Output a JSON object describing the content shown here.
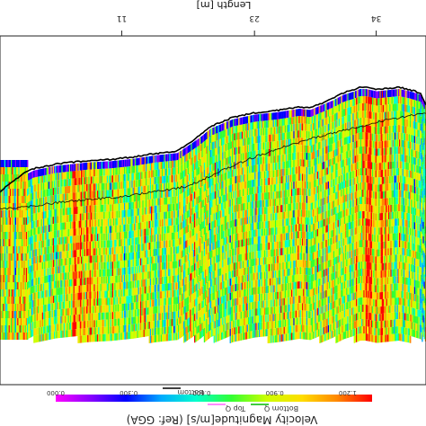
{
  "chart_data": {
    "type": "heatmap",
    "xlabel": "Length [m]",
    "x_ticks": [
      "11",
      "23",
      "34"
    ],
    "x_tick_values": [
      11,
      23,
      34
    ],
    "xlim": [
      0,
      38.5
    ],
    "colorbar": {
      "title": "Velocity Magnitude[m/s] (Ref: GGA)",
      "ticks": [
        "0.000",
        "0.300",
        "0.600",
        "0.900",
        "1.200"
      ],
      "tick_values": [
        0.0,
        0.3,
        0.6,
        0.9,
        1.2
      ],
      "range": [
        0.0,
        1.3
      ],
      "colors": [
        "#ff00ff",
        "#8800ff",
        "#0000ff",
        "#00aaff",
        "#00ffcc",
        "#33ff33",
        "#ccff00",
        "#ffdd00",
        "#ff8800",
        "#ff0000"
      ]
    },
    "legend": [
      {
        "name": "Bottom",
        "color": "#000000"
      },
      {
        "name": "Top Q",
        "color": "#ff66ff"
      },
      {
        "name": "Bottom Q",
        "color": "#00bb00"
      }
    ],
    "bottom_profile": {
      "x": [
        0,
        1,
        2,
        3,
        4,
        5,
        6,
        8,
        10,
        12,
        14,
        16,
        18,
        19,
        20,
        21,
        22,
        23,
        25,
        27,
        28,
        29,
        30,
        31,
        32,
        32.5,
        33,
        34,
        35,
        36,
        37,
        38,
        38.5
      ],
      "depth": [
        1.9,
        1.82,
        1.75,
        1.7,
        1.68,
        1.66,
        1.65,
        1.63,
        1.62,
        1.6,
        1.57,
        1.55,
        1.42,
        1.34,
        1.3,
        1.26,
        1.24,
        1.22,
        1.2,
        1.17,
        1.18,
        1.14,
        1.1,
        1.05,
        1.02,
        1.0,
        1.0,
        1.02,
        1.01,
        1.0,
        1.02,
        1.05,
        1.15
      ]
    },
    "series": [
      {
        "name": "Bottom Q",
        "x": [
          0,
          3,
          6,
          10,
          14,
          17,
          20,
          23,
          26,
          29,
          32,
          35,
          38.5
        ],
        "depth": [
          2.05,
          2.02,
          1.98,
          1.95,
          1.9,
          1.85,
          1.72,
          1.6,
          1.5,
          1.42,
          1.35,
          1.28,
          1.22
        ]
      }
    ],
    "cell_depth_range": [
      1.6,
      3.2
    ],
    "grid": false
  }
}
